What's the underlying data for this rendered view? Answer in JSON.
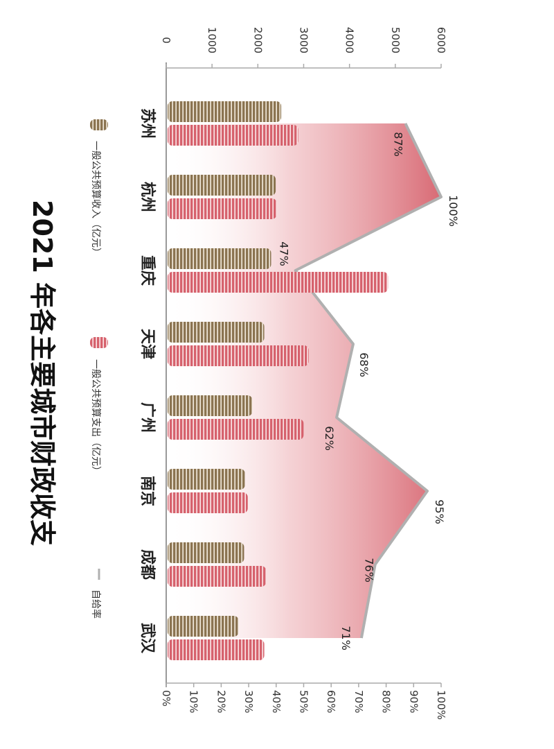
{
  "chart_data": {
    "type": "bar",
    "title": "2021 年各主要城市财政收支",
    "categories": [
      "苏州",
      "杭州",
      "重庆",
      "天津",
      "广州",
      "南京",
      "成都",
      "武汉"
    ],
    "series": [
      {
        "name": "一般公共预算收入（亿元）",
        "values": [
          2510,
          2390,
          2290,
          2140,
          1880,
          1720,
          1700,
          1580
        ],
        "color": "#8b7451"
      },
      {
        "name": "一般公共预算支出（亿元）",
        "values": [
          2880,
          2410,
          4840,
          3110,
          3000,
          1780,
          2180,
          2140
        ],
        "color": "#d6626d"
      },
      {
        "name": "自给率",
        "values": [
          87,
          100,
          47,
          68,
          62,
          95,
          76,
          71
        ],
        "unit": "%",
        "color": "#b0b0b0"
      }
    ],
    "value_axis": {
      "ticks": [
        "0",
        "1000",
        "2000",
        "3000",
        "4000",
        "5000",
        "6000"
      ],
      "range": [
        0,
        6000
      ]
    },
    "ratio_axis": {
      "ticks": [
        "0%",
        "10%",
        "20%",
        "30%",
        "40%",
        "50%",
        "60%",
        "70%",
        "80%",
        "90%",
        "100%"
      ],
      "range": [
        0,
        100
      ]
    },
    "orientation": "rotated 90° clockwise",
    "legend_position": "bottom"
  }
}
